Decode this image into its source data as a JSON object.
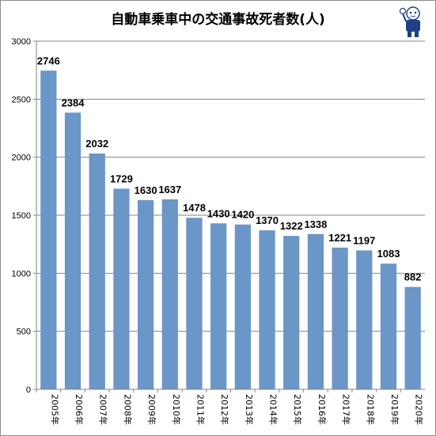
{
  "title": "自動車乗車中の交通事故死者数(人)",
  "chart_data": {
    "type": "bar",
    "title": "自動車乗車中の交通事故死者数(人)",
    "categories": [
      "2005年",
      "2006年",
      "2007年",
      "2008年",
      "2009年",
      "2010年",
      "2011年",
      "2012年",
      "2013年",
      "2014年",
      "2015年",
      "2016年",
      "2017年",
      "2018年",
      "2019年",
      "2020年"
    ],
    "values": [
      2746,
      2384,
      2032,
      1729,
      1630,
      1637,
      1478,
      1430,
      1420,
      1370,
      1322,
      1338,
      1221,
      1197,
      1083,
      882
    ],
    "ylim": [
      0,
      3000
    ],
    "yticks": [
      0,
      500,
      1000,
      1500,
      2000,
      2500,
      3000
    ],
    "grid": true,
    "bar_color": "#6b96c8",
    "data_labels": true
  },
  "mascot": {
    "icon": "mascot-character-icon"
  }
}
